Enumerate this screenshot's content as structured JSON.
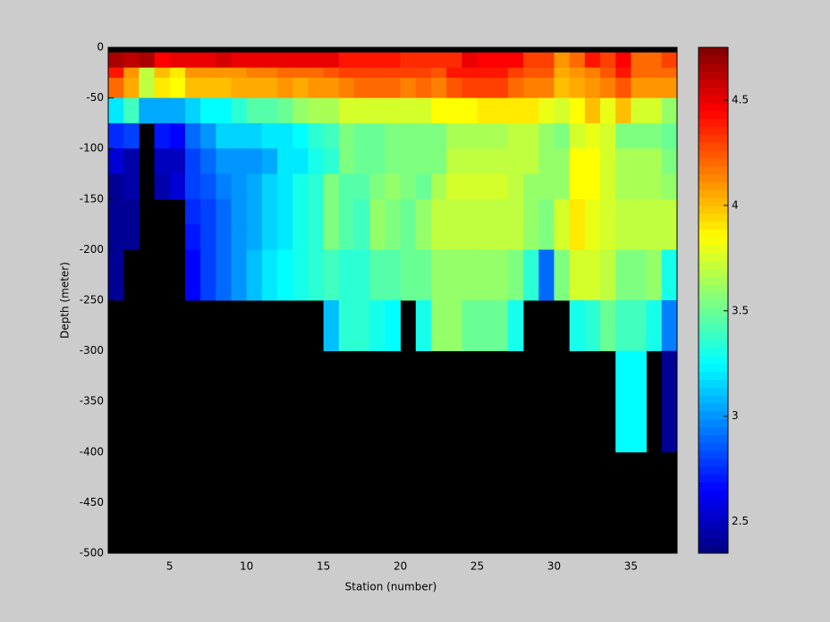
{
  "chart_data": {
    "type": "heatmap",
    "xlabel": "Station (number)",
    "ylabel": "Depth (meter)",
    "colormap": "jet",
    "background": "#000000",
    "clim": [
      2.35,
      4.75
    ],
    "colorbar_ticks": [
      2.5,
      3,
      3.5,
      4,
      4.5
    ],
    "xlim": [
      1,
      38
    ],
    "ylim": [
      -500,
      0
    ],
    "xticks": [
      5,
      10,
      15,
      20,
      25,
      30,
      35
    ],
    "yticks": [
      0,
      -50,
      -100,
      -150,
      -200,
      -250,
      -300,
      -350,
      -400,
      -450,
      -500
    ],
    "x_edges": [
      1,
      2,
      3,
      4,
      5,
      6,
      7,
      8,
      9,
      10,
      11,
      12,
      13,
      14,
      15,
      16,
      17,
      18,
      19,
      20,
      21,
      22,
      23,
      24,
      25,
      26,
      27,
      28,
      29,
      30,
      31,
      32,
      33,
      34,
      35,
      36,
      37,
      38
    ],
    "y_edges": [
      -5,
      -20,
      -30,
      -50,
      -75,
      -100,
      -125,
      -150,
      -175,
      -200,
      -250,
      -300,
      -400
    ],
    "values": [
      [
        4.65,
        4.6,
        4.65,
        4.45,
        4.5,
        4.5,
        4.5,
        4.55,
        4.5,
        4.5,
        4.5,
        4.5,
        4.5,
        4.5,
        4.5,
        4.4,
        4.4,
        4.4,
        4.4,
        4.35,
        4.35,
        4.35,
        4.35,
        4.5,
        4.45,
        4.45,
        4.45,
        4.3,
        4.3,
        4.1,
        4.2,
        4.4,
        4.3,
        4.45,
        4.2,
        4.2,
        4.3
      ],
      [
        4.4,
        4.1,
        3.7,
        4.0,
        3.9,
        4.1,
        4.1,
        4.1,
        4.1,
        4.15,
        4.15,
        4.2,
        4.2,
        4.2,
        4.25,
        4.3,
        4.3,
        4.3,
        4.3,
        4.3,
        4.3,
        4.25,
        4.4,
        4.4,
        4.4,
        4.4,
        4.3,
        4.25,
        4.25,
        4.05,
        4.1,
        4.15,
        4.25,
        4.4,
        4.2,
        4.2,
        4.2
      ],
      [
        4.2,
        4.05,
        3.7,
        3.9,
        3.85,
        4.0,
        4.0,
        4.0,
        4.05,
        4.05,
        4.05,
        4.1,
        4.05,
        4.1,
        4.1,
        4.15,
        4.2,
        4.2,
        4.2,
        4.15,
        4.2,
        4.15,
        4.25,
        4.3,
        4.3,
        4.3,
        4.2,
        4.15,
        4.15,
        4.0,
        4.05,
        4.1,
        4.15,
        4.25,
        4.1,
        4.1,
        4.1
      ],
      [
        3.2,
        3.4,
        3.05,
        3.05,
        3.05,
        3.15,
        3.25,
        3.25,
        3.35,
        3.45,
        3.45,
        3.5,
        3.6,
        3.65,
        3.65,
        3.75,
        3.75,
        3.75,
        3.75,
        3.75,
        3.75,
        3.85,
        3.85,
        3.85,
        3.9,
        3.9,
        3.9,
        3.9,
        3.8,
        3.75,
        3.85,
        4.0,
        3.8,
        4.0,
        3.75,
        3.75,
        3.6
      ],
      [
        2.75,
        2.8,
        null,
        2.7,
        2.65,
        2.9,
        3.0,
        3.15,
        3.15,
        3.15,
        3.2,
        3.2,
        3.25,
        3.35,
        3.4,
        3.55,
        3.5,
        3.5,
        3.55,
        3.55,
        3.55,
        3.55,
        3.65,
        3.65,
        3.65,
        3.65,
        3.7,
        3.7,
        3.6,
        3.55,
        3.75,
        3.8,
        3.75,
        3.55,
        3.55,
        3.55,
        3.5
      ],
      [
        2.55,
        2.45,
        null,
        2.5,
        2.5,
        2.8,
        2.9,
        3.0,
        3.0,
        3.0,
        3.05,
        3.2,
        3.2,
        3.3,
        3.35,
        3.55,
        3.5,
        3.5,
        3.55,
        3.55,
        3.55,
        3.55,
        3.7,
        3.7,
        3.7,
        3.7,
        3.7,
        3.7,
        3.6,
        3.6,
        3.85,
        3.85,
        3.75,
        3.65,
        3.65,
        3.65,
        3.55
      ],
      [
        2.4,
        2.45,
        null,
        2.45,
        2.55,
        2.8,
        2.85,
        2.95,
        3.0,
        3.05,
        3.15,
        3.2,
        3.3,
        3.35,
        3.55,
        3.45,
        3.45,
        3.55,
        3.6,
        3.55,
        3.5,
        3.65,
        3.75,
        3.75,
        3.75,
        3.75,
        3.7,
        3.6,
        3.6,
        3.6,
        3.85,
        3.85,
        3.75,
        3.65,
        3.65,
        3.65,
        3.6
      ],
      [
        2.4,
        2.4,
        null,
        null,
        null,
        2.75,
        2.8,
        2.9,
        3.0,
        3.05,
        3.15,
        3.2,
        3.3,
        3.35,
        3.55,
        3.45,
        3.4,
        3.6,
        3.55,
        3.5,
        3.6,
        3.7,
        3.7,
        3.7,
        3.7,
        3.7,
        3.7,
        3.6,
        3.55,
        3.75,
        3.9,
        3.8,
        3.75,
        3.7,
        3.7,
        3.7,
        3.7
      ],
      [
        2.4,
        2.4,
        null,
        null,
        null,
        2.7,
        2.8,
        2.9,
        3.0,
        3.05,
        3.15,
        3.2,
        3.3,
        3.35,
        3.55,
        3.45,
        3.4,
        3.6,
        3.55,
        3.5,
        3.6,
        3.7,
        3.7,
        3.7,
        3.7,
        3.7,
        3.7,
        3.6,
        3.55,
        3.75,
        3.9,
        3.8,
        3.75,
        3.7,
        3.7,
        3.7,
        3.7
      ],
      [
        2.4,
        null,
        null,
        null,
        null,
        2.65,
        2.8,
        2.9,
        3.0,
        3.1,
        3.2,
        3.25,
        3.3,
        3.35,
        3.4,
        3.35,
        3.35,
        3.45,
        3.45,
        3.5,
        3.5,
        3.6,
        3.6,
        3.6,
        3.6,
        3.6,
        3.55,
        3.35,
        2.9,
        3.55,
        3.75,
        3.75,
        3.7,
        3.55,
        3.55,
        3.6,
        3.3
      ],
      [
        null,
        null,
        null,
        null,
        null,
        null,
        null,
        null,
        null,
        null,
        null,
        null,
        null,
        null,
        3.1,
        3.35,
        3.35,
        3.3,
        3.25,
        null,
        3.3,
        3.6,
        3.6,
        3.5,
        3.5,
        3.5,
        3.3,
        null,
        null,
        null,
        3.3,
        3.35,
        3.5,
        3.4,
        3.4,
        3.3,
        2.95
      ],
      [
        null,
        null,
        null,
        null,
        null,
        null,
        null,
        null,
        null,
        null,
        null,
        null,
        null,
        null,
        null,
        null,
        null,
        null,
        null,
        null,
        null,
        null,
        null,
        null,
        null,
        null,
        null,
        null,
        null,
        null,
        null,
        null,
        null,
        3.25,
        3.25,
        null,
        2.4
      ]
    ]
  }
}
